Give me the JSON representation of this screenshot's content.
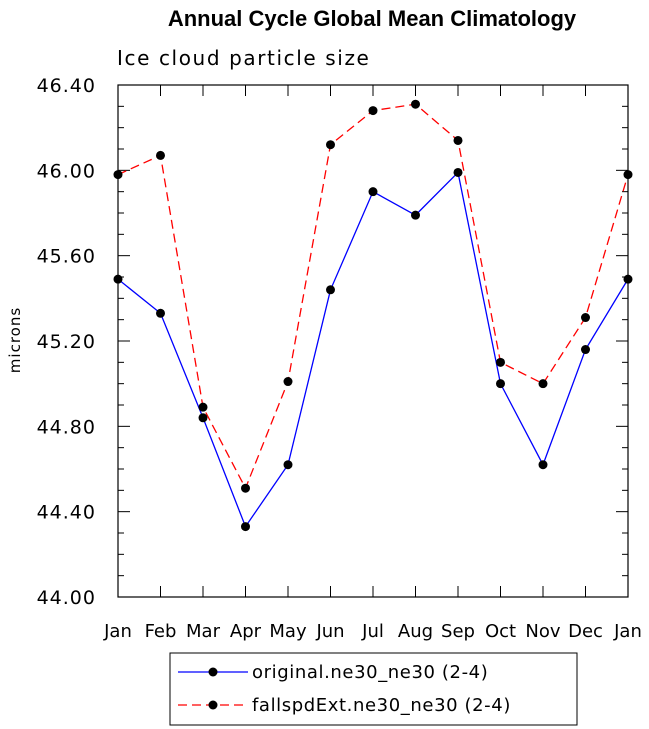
{
  "chart_data": {
    "type": "line",
    "title": "Annual Cycle Global Mean Climatology",
    "subtitle": "Ice cloud particle size",
    "xlabel": "",
    "ylabel": "microns",
    "categories": [
      "Jan",
      "Feb",
      "Mar",
      "Apr",
      "May",
      "Jun",
      "Jul",
      "Aug",
      "Sep",
      "Oct",
      "Nov",
      "Dec",
      "Jan"
    ],
    "ylim": [
      44.0,
      46.4
    ],
    "yticks": [
      "44.00",
      "44.40",
      "44.80",
      "45.20",
      "45.60",
      "46.00",
      "46.40"
    ],
    "grid": false,
    "legend_position": "bottom-center",
    "series": [
      {
        "name": "original.ne30_ne30 (2-4)",
        "color": "#0000ff",
        "dash": "solid",
        "marker": "filled-circle",
        "values": [
          45.49,
          45.33,
          44.84,
          44.33,
          44.62,
          45.44,
          45.9,
          45.79,
          45.99,
          45.0,
          44.62,
          45.16,
          45.49
        ]
      },
      {
        "name": "fallspdExt.ne30_ne30 (2-4)",
        "color": "#ff0000",
        "dash": "dashed",
        "marker": "filled-circle",
        "values": [
          45.98,
          46.07,
          44.89,
          44.51,
          45.01,
          46.12,
          46.28,
          46.31,
          46.14,
          45.1,
          45.0,
          45.31,
          45.98
        ]
      }
    ]
  }
}
